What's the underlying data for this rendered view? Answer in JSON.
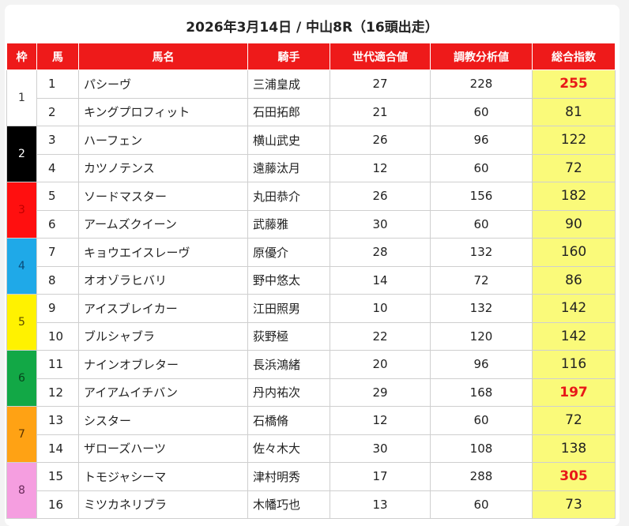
{
  "title": "2026年3月14日 / 中山8R（16頭出走）",
  "table": {
    "headers": [
      "枠",
      "馬",
      "馬名",
      "騎手",
      "世代適合値",
      "調教分析値",
      "総合指数"
    ],
    "waku": [
      {
        "label": "1",
        "bg": "#ffffff",
        "fg": "#333333"
      },
      {
        "label": "2",
        "bg": "#000000",
        "fg": "#ffffff"
      },
      {
        "label": "3",
        "bg": "#ff0f0f",
        "fg": "#c00000"
      },
      {
        "label": "4",
        "bg": "#1fa9e8",
        "fg": "#0a4a78"
      },
      {
        "label": "5",
        "bg": "#fff200",
        "fg": "#5a4a00"
      },
      {
        "label": "6",
        "bg": "#12a846",
        "fg": "#07451c"
      },
      {
        "label": "7",
        "bg": "#ffa214",
        "fg": "#5a3300"
      },
      {
        "label": "8",
        "bg": "#f59ee0",
        "fg": "#6a2a5a"
      }
    ],
    "rows": [
      {
        "num": "1",
        "name": "パシーヴ",
        "jockey": "三浦皇成",
        "gen": "27",
        "train": "228",
        "total": "255",
        "highlight": true
      },
      {
        "num": "2",
        "name": "キングプロフィット",
        "jockey": "石田拓郎",
        "gen": "21",
        "train": "60",
        "total": "81",
        "highlight": false
      },
      {
        "num": "3",
        "name": "ハーフェン",
        "jockey": "横山武史",
        "gen": "26",
        "train": "96",
        "total": "122",
        "highlight": false
      },
      {
        "num": "4",
        "name": "カツノテンス",
        "jockey": "遠藤汰月",
        "gen": "12",
        "train": "60",
        "total": "72",
        "highlight": false
      },
      {
        "num": "5",
        "name": "ソードマスター",
        "jockey": "丸田恭介",
        "gen": "26",
        "train": "156",
        "total": "182",
        "highlight": false
      },
      {
        "num": "6",
        "name": "アームズクイーン",
        "jockey": "武藤雅",
        "gen": "30",
        "train": "60",
        "total": "90",
        "highlight": false
      },
      {
        "num": "7",
        "name": "キョウエイスレーヴ",
        "jockey": "原優介",
        "gen": "28",
        "train": "132",
        "total": "160",
        "highlight": false
      },
      {
        "num": "8",
        "name": "オオゾラヒバリ",
        "jockey": "野中悠太",
        "gen": "14",
        "train": "72",
        "total": "86",
        "highlight": false
      },
      {
        "num": "9",
        "name": "アイスブレイカー",
        "jockey": "江田照男",
        "gen": "10",
        "train": "132",
        "total": "142",
        "highlight": false
      },
      {
        "num": "10",
        "name": "ブルシャブラ",
        "jockey": "荻野極",
        "gen": "22",
        "train": "120",
        "total": "142",
        "highlight": false
      },
      {
        "num": "11",
        "name": "ナインオブレター",
        "jockey": "長浜鴻緒",
        "gen": "20",
        "train": "96",
        "total": "116",
        "highlight": false
      },
      {
        "num": "12",
        "name": "アイアムイチバン",
        "jockey": "丹内祐次",
        "gen": "29",
        "train": "168",
        "total": "197",
        "highlight": true
      },
      {
        "num": "13",
        "name": "シスター",
        "jockey": "石橋脩",
        "gen": "12",
        "train": "60",
        "total": "72",
        "highlight": false
      },
      {
        "num": "14",
        "name": "ザローズハーツ",
        "jockey": "佐々木大",
        "gen": "30",
        "train": "108",
        "total": "138",
        "highlight": false
      },
      {
        "num": "15",
        "name": "トモジャシーマ",
        "jockey": "津村明秀",
        "gen": "17",
        "train": "288",
        "total": "305",
        "highlight": true
      },
      {
        "num": "16",
        "name": "ミツカネリブラ",
        "jockey": "木幡巧也",
        "gen": "13",
        "train": "60",
        "total": "73",
        "highlight": false
      }
    ]
  }
}
